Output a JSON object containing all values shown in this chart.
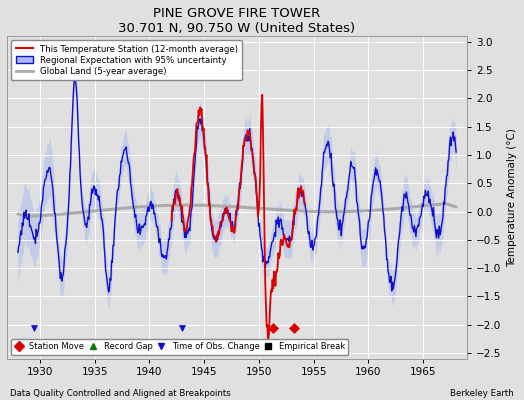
{
  "title": "PINE GROVE FIRE TOWER",
  "subtitle": "30.701 N, 90.750 W (United States)",
  "ylabel": "Temperature Anomaly (°C)",
  "xlabel_note": "Data Quality Controlled and Aligned at Breakpoints",
  "source_note": "Berkeley Earth",
  "xlim": [
    1927,
    1969
  ],
  "ylim": [
    -2.6,
    3.1
  ],
  "yticks": [
    -2.5,
    -2,
    -1.5,
    -1,
    -0.5,
    0,
    0.5,
    1,
    1.5,
    2,
    2.5,
    3
  ],
  "xticks": [
    1930,
    1935,
    1940,
    1945,
    1950,
    1955,
    1960,
    1965
  ],
  "bg_color": "#e0e0e0",
  "plot_bg_color": "#e0e0e0",
  "grid_color": "#ffffff",
  "regional_color": "#1111cc",
  "regional_band_color": "#aabbee",
  "station_color": "#dd0000",
  "global_color": "#aaaaaa",
  "station_move_years": [
    1951.3,
    1953.2
  ],
  "station_move_y": -2.05,
  "obs_change_years": [
    1929.5,
    1943.0
  ],
  "obs_change_y": -2.05
}
